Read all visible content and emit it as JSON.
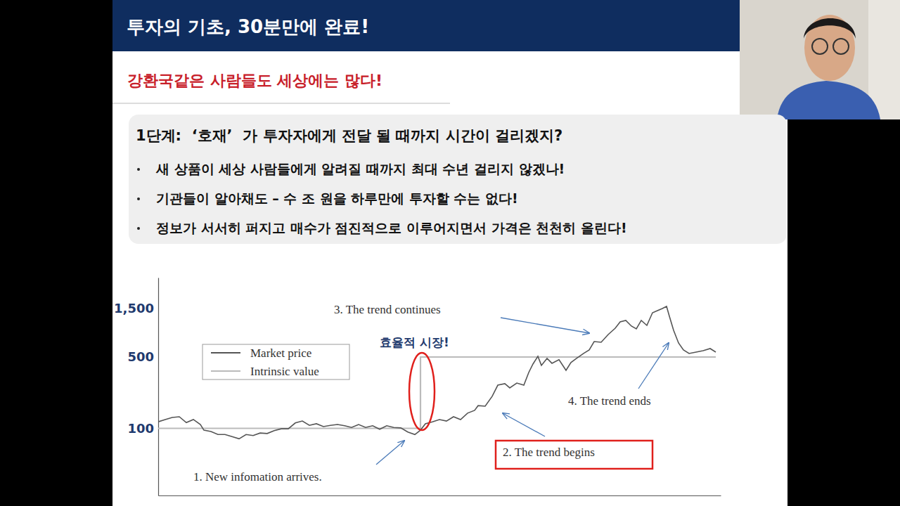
{
  "slide": {
    "title": "투자의 기초, 30분만에 완료!",
    "subtitle": "강환국같은 사람들도 세상에는 많다!",
    "box": {
      "heading": "1단계:  ‘호재’  가 투자자에게 전달 될 때까지 시간이 걸리겠지?",
      "bullets": [
        "새 상품이 세상 사람들에게 알려질 때까지 최대 수년 걸리지 않겠나!",
        "기관들이 알아채도 – 수 조 원을 하루만에 투자할 수는 없다!",
        "정보가 서서히 퍼지고 매수가 점진적으로 이루어지면서 가격은 천천히 올린다!"
      ]
    }
  },
  "chart_data": {
    "type": "line",
    "log": "y",
    "legend": "upper left",
    "tick_labels": "y",
    "xlim": [
      0,
      800
    ],
    "ylim": [
      22,
      3000
    ],
    "yticks": [
      100,
      500,
      {
        "value": 1500,
        "label": "1,500"
      }
    ],
    "series": [
      {
        "name": "Market price",
        "color": "#555555",
        "x": [
          0,
          10,
          20,
          30,
          40,
          50,
          60,
          65,
          75,
          85,
          95,
          105,
          115,
          125,
          135,
          145,
          155,
          165,
          175,
          185,
          195,
          205,
          215,
          225,
          235,
          245,
          255,
          265,
          275,
          285,
          295,
          305,
          315,
          325,
          335,
          345,
          355,
          365,
          373,
          380,
          390,
          400,
          410,
          420,
          430,
          440,
          450,
          455,
          465,
          475,
          483,
          493,
          500,
          510,
          520,
          527,
          533,
          540,
          545,
          553,
          560,
          570,
          580,
          587,
          595,
          605,
          613,
          620,
          630,
          640,
          650,
          657,
          665,
          673,
          680,
          687,
          695,
          703,
          710,
          717,
          723,
          727,
          733,
          740,
          747,
          755,
          765,
          775,
          785,
          793
        ],
        "values": [
          116,
          122,
          128,
          130,
          114,
          122,
          109,
          96,
          93,
          87,
          87,
          83,
          79,
          87,
          85,
          90,
          89,
          95,
          99,
          99,
          113,
          118,
          107,
          111,
          104,
          107,
          109,
          106,
          102,
          109,
          102,
          106,
          98,
          106,
          102,
          101,
          92,
          87,
          96,
          111,
          116,
          122,
          118,
          130,
          122,
          141,
          150,
          167,
          165,
          206,
          265,
          274,
          249,
          278,
          265,
          353,
          427,
          508,
          414,
          485,
          434,
          470,
          370,
          441,
          485,
          542,
          586,
          709,
          698,
          831,
          958,
          1105,
          1141,
          1005,
          943,
          1141,
          1021,
          1357,
          1424,
          1494,
          1567,
          1255,
          914,
          687,
          586,
          542,
          559,
          577,
          605,
          559
        ]
      },
      {
        "name": "Intrinsic value",
        "color": "#bbbbbb",
        "x": [
          0,
          373,
          373,
          793
        ],
        "values": [
          100,
          100,
          500,
          500
        ]
      }
    ],
    "annotations": [
      "1. New infomation arrives.",
      "2. The trend begins",
      "3. The trend continues",
      "4. The trend ends",
      "효율적 시장!"
    ]
  }
}
